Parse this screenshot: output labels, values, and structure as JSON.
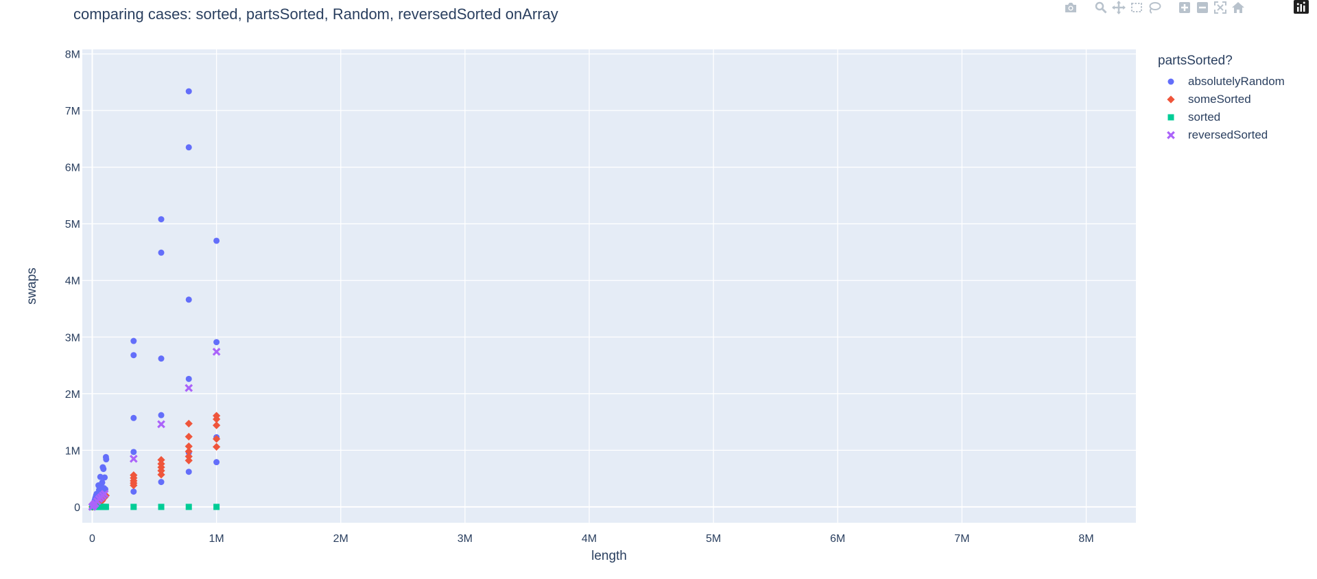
{
  "chart_data": {
    "type": "scatter",
    "title": "comparing cases: sorted, partsSorted, Random, reversedSorted onArray",
    "xlabel": "length",
    "ylabel": "swaps",
    "xlim": [
      -80000,
      8400000
    ],
    "ylim": [
      -280000,
      8080000
    ],
    "xticks": [
      0,
      1000000,
      2000000,
      3000000,
      4000000,
      5000000,
      6000000,
      7000000,
      8000000
    ],
    "xtick_labels": [
      "0",
      "1M",
      "2M",
      "3M",
      "4M",
      "5M",
      "6M",
      "7M",
      "8M"
    ],
    "yticks": [
      0,
      1000000,
      2000000,
      3000000,
      4000000,
      5000000,
      6000000,
      7000000,
      8000000
    ],
    "ytick_labels": [
      "0",
      "1M",
      "2M",
      "3M",
      "4M",
      "5M",
      "6M",
      "7M",
      "8M"
    ],
    "grid": true,
    "legend_title": "partsSorted?",
    "legend_position": "right",
    "series": [
      {
        "name": "absolutelyRandom",
        "color": "#636efa",
        "symbol": "circle",
        "points": [
          [
            0,
            0
          ],
          [
            1000,
            3000
          ],
          [
            3000,
            10000
          ],
          [
            5000,
            20000
          ],
          [
            8000,
            35000
          ],
          [
            10000,
            50000
          ],
          [
            15000,
            80000
          ],
          [
            20000,
            120000
          ],
          [
            25000,
            160000
          ],
          [
            30000,
            200000
          ],
          [
            35000,
            230000
          ],
          [
            45000,
            220000
          ],
          [
            50000,
            380000
          ],
          [
            55000,
            300000
          ],
          [
            60000,
            250000
          ],
          [
            65000,
            530000
          ],
          [
            70000,
            350000
          ],
          [
            75000,
            280000
          ],
          [
            80000,
            430000
          ],
          [
            85000,
            700000
          ],
          [
            90000,
            670000
          ],
          [
            95000,
            330000
          ],
          [
            100000,
            520000
          ],
          [
            105000,
            310000
          ],
          [
            110000,
            880000
          ],
          [
            112000,
            840000
          ],
          [
            333000,
            2930000
          ],
          [
            333000,
            2680000
          ],
          [
            333000,
            1570000
          ],
          [
            333000,
            970000
          ],
          [
            333000,
            270000
          ],
          [
            555000,
            5080000
          ],
          [
            555000,
            4490000
          ],
          [
            555000,
            2620000
          ],
          [
            555000,
            1620000
          ],
          [
            555000,
            440000
          ],
          [
            777000,
            7340000
          ],
          [
            777000,
            6350000
          ],
          [
            777000,
            3660000
          ],
          [
            777000,
            2260000
          ],
          [
            777000,
            960000
          ],
          [
            777000,
            620000
          ],
          [
            1000000,
            4700000
          ],
          [
            1000000,
            2910000
          ],
          [
            1000000,
            1230000
          ],
          [
            1000000,
            790000
          ]
        ]
      },
      {
        "name": "someSorted",
        "color": "#ef553b",
        "symbol": "diamond",
        "points": [
          [
            0,
            0
          ],
          [
            5000,
            5000
          ],
          [
            10000,
            10000
          ],
          [
            20000,
            20000
          ],
          [
            30000,
            40000
          ],
          [
            40000,
            50000
          ],
          [
            50000,
            70000
          ],
          [
            60000,
            80000
          ],
          [
            70000,
            100000
          ],
          [
            80000,
            110000
          ],
          [
            90000,
            150000
          ],
          [
            100000,
            170000
          ],
          [
            110000,
            200000
          ],
          [
            333000,
            560000
          ],
          [
            333000,
            510000
          ],
          [
            333000,
            460000
          ],
          [
            333000,
            420000
          ],
          [
            333000,
            380000
          ],
          [
            555000,
            830000
          ],
          [
            555000,
            760000
          ],
          [
            555000,
            700000
          ],
          [
            555000,
            640000
          ],
          [
            555000,
            570000
          ],
          [
            777000,
            1470000
          ],
          [
            777000,
            1240000
          ],
          [
            777000,
            1070000
          ],
          [
            777000,
            980000
          ],
          [
            777000,
            890000
          ],
          [
            777000,
            820000
          ],
          [
            1000000,
            1610000
          ],
          [
            1000000,
            1550000
          ],
          [
            1000000,
            1440000
          ],
          [
            1000000,
            1200000
          ],
          [
            1000000,
            1060000
          ]
        ]
      },
      {
        "name": "sorted",
        "color": "#00cc96",
        "symbol": "square",
        "points": [
          [
            0,
            0
          ],
          [
            10000,
            0
          ],
          [
            20000,
            0
          ],
          [
            30000,
            0
          ],
          [
            40000,
            0
          ],
          [
            50000,
            0
          ],
          [
            60000,
            0
          ],
          [
            70000,
            0
          ],
          [
            80000,
            0
          ],
          [
            90000,
            0
          ],
          [
            100000,
            0
          ],
          [
            110000,
            0
          ],
          [
            333000,
            0
          ],
          [
            555000,
            0
          ],
          [
            777000,
            0
          ],
          [
            1000000,
            0
          ]
        ]
      },
      {
        "name": "reversedSorted",
        "color": "#ab63fa",
        "symbol": "x",
        "points": [
          [
            0,
            0
          ],
          [
            3000,
            10000
          ],
          [
            8000,
            20000
          ],
          [
            15000,
            40000
          ],
          [
            25000,
            60000
          ],
          [
            40000,
            100000
          ],
          [
            55000,
            140000
          ],
          [
            70000,
            170000
          ],
          [
            85000,
            200000
          ],
          [
            100000,
            230000
          ],
          [
            333000,
            850000
          ],
          [
            555000,
            1460000
          ],
          [
            777000,
            2100000
          ],
          [
            1000000,
            2740000
          ]
        ]
      }
    ]
  },
  "modebar": {
    "icons": [
      "camera-icon",
      "zoom-icon",
      "pan-icon",
      "box-select-icon",
      "lasso-select-icon",
      "zoom-in-icon",
      "zoom-out-icon",
      "autoscale-icon",
      "reset-axes-icon",
      "plotly-logo-icon"
    ]
  }
}
